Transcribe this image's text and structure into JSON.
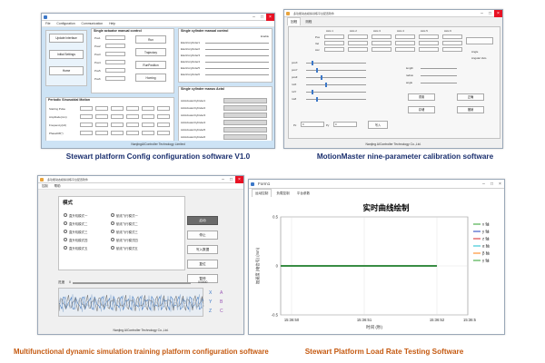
{
  "captions": {
    "p1": "Stewart platform Config configuration software V1.0",
    "p2": "MotionMaster nine-parameter calibration software",
    "p3": "Multifunctional dynamic simulation training platform configuration software",
    "p4": "Stewart Platform Load Rate Testing Software"
  },
  "colors": {
    "caption_blue": "#1a2f6e",
    "caption_orange": "#c55a11",
    "accent_blue": "#3c78c8",
    "close_red": "#e81123"
  },
  "p1": {
    "menu": [
      "File",
      "Configuration",
      "Communication",
      "Help"
    ],
    "left_buttons": [
      "Update Interface",
      "Initial Settings",
      "Home"
    ],
    "manual_title": "Single actuator manual control",
    "manual_rows": [
      "Pos1",
      "Pos2",
      "Pos3",
      "Pos4",
      "Pos5",
      "Pos6"
    ],
    "manual_buttons": [
      "Run",
      "Trajectory",
      "RunPosition",
      "Homing"
    ],
    "cyl_title": "Single cylinder manual control",
    "cyl_label": "Enable",
    "cyl_rows": [
      "Electriccylinder1",
      "Electriccylinder2",
      "Electriccylinder3",
      "Electriccylinder4",
      "Electriccylinder5",
      "Electriccylinder6"
    ],
    "sin_title": "Periodic Sinusoidal Motion",
    "sin_rows": [
      "Starting Pulse",
      "Amplitude(mm)",
      "Frequency(Hz)",
      "PhaseDiff(°)"
    ],
    "actual_title": "Single cylinder manus Actal",
    "actual_rows": [
      "ActActuatorCylinder1",
      "ActActuatorCylinder2",
      "ActActuatorCylinder3",
      "ActActuatorCylinder4",
      "ActActuatorCylinder5",
      "ActActuatorCylinder6"
    ],
    "footer": "NanjingAIController Technology Limited"
  },
  "p2": {
    "title": "多功能动态模拟训练平台配置软件",
    "tabs": [
      "回程",
      "测程"
    ],
    "axis_headers": [
      "Axis 1",
      "Axis 2",
      "Axis 3",
      "Axis 4",
      "Axis 5",
      "Axis 6"
    ],
    "param_rows": [
      "Pos",
      "Vel",
      "Acc"
    ],
    "slider_labels": [
      "posX",
      "posY",
      "posZ",
      "rotX",
      "rotY",
      "rotZ"
    ],
    "right_labels": [
      "length",
      "radius",
      "angle"
    ],
    "right_buttons": [
      "重置",
      "正确",
      "存储",
      "撤销"
    ],
    "option_labels": [
      "Angle",
      "Angular Velo"
    ],
    "write_button": "写入",
    "bottom_labels": [
      "Px",
      "Py"
    ],
    "bottom_values": [
      "0",
      "0"
    ],
    "footer": "Nanjing AIController Technology Co.,Ltd."
  },
  "p3": {
    "title": "多功能动态模拟训练平台配置软件",
    "menu": [
      "控制",
      "帮助"
    ],
    "group_title": "模式",
    "modes_left": [
      "直升机模式一",
      "直升机模式二",
      "直升机模式三",
      "直升机模式四",
      "直升机模式五"
    ],
    "modes_right": [
      "航线飞行模式一",
      "航线飞行模式二",
      "航线飞行模式三",
      "航线飞行模式四",
      "航线飞行模式五"
    ],
    "side_buttons": [
      "启动",
      "停止",
      "写入数据",
      "复位",
      "暂停"
    ],
    "progress_label": "进度",
    "progress_value": "0",
    "progress_right": "0/3000",
    "axis_letters": [
      "X",
      "Y",
      "Z",
      "A",
      "B",
      "C"
    ],
    "footer": "Nanjing AIController Technology Co.,Ltd."
  },
  "p4": {
    "title": "Form1",
    "tabs": [
      "运动控制",
      "负载控制",
      "平台参数"
    ],
    "chart_data": {
      "type": "line",
      "title": "实时曲线绘制",
      "xlabel": "时间 (秒)",
      "ylabel": "加速度 (电信号) (mm)",
      "ylim": [
        -0.5,
        0.5
      ],
      "y_ticks": [
        "0.5",
        "0",
        "-0.5"
      ],
      "x_ticks": [
        "15:36:50",
        "15:36:51",
        "15:36:52",
        "15:36:5"
      ],
      "series": [
        {
          "name": "x 轴",
          "color": "#2ca02c"
        },
        {
          "name": "y 轴",
          "color": "#1f3fbf"
        },
        {
          "name": "z 轴",
          "color": "#d62728"
        },
        {
          "name": "α 轴",
          "color": "#17becf"
        },
        {
          "name": "β 轴",
          "color": "#ff7f0e"
        },
        {
          "name": "γ 轴",
          "color": "#2ca02c"
        }
      ]
    }
  }
}
